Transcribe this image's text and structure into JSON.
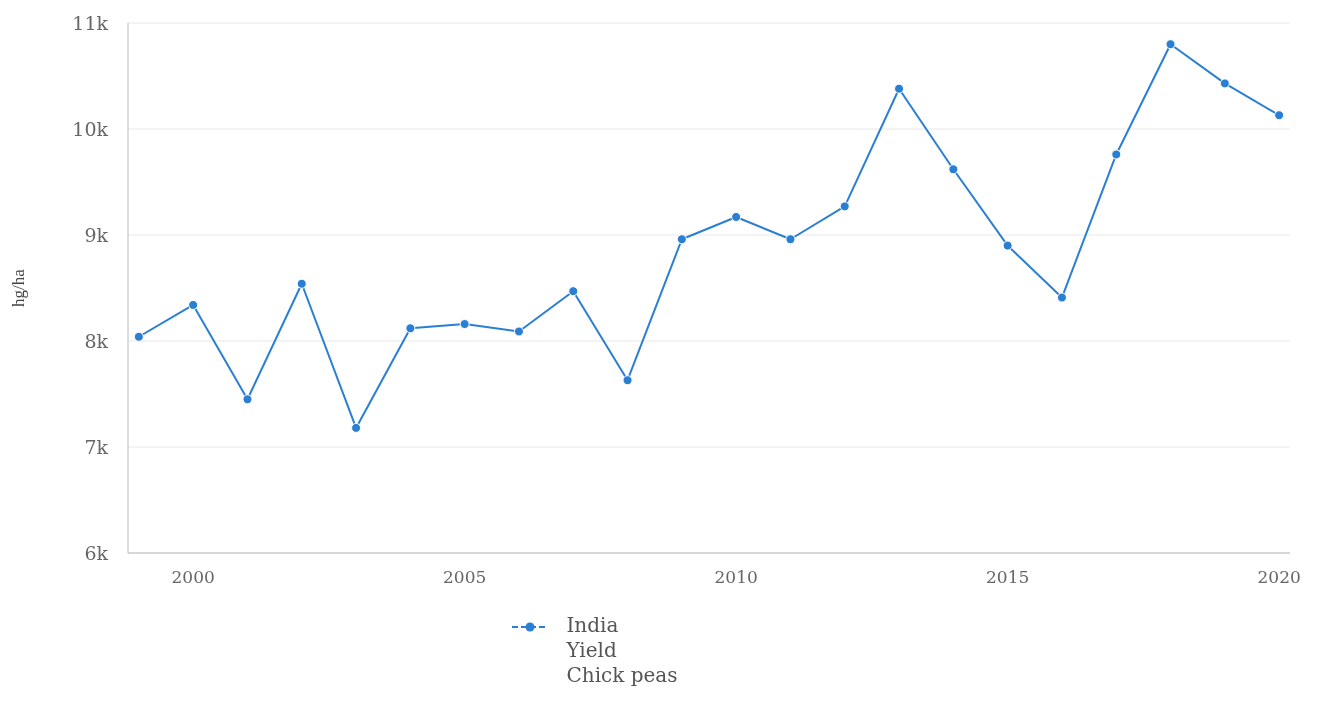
{
  "chart_data": {
    "type": "line",
    "ylabel": "hg/ha",
    "x": [
      1999,
      2000,
      2001,
      2002,
      2003,
      2004,
      2005,
      2006,
      2007,
      2008,
      2009,
      2010,
      2011,
      2012,
      2013,
      2014,
      2015,
      2016,
      2017,
      2018,
      2019,
      2020
    ],
    "series": [
      {
        "name": "India\nYield\nChick peas",
        "color": "#2a7fd4",
        "values": [
          8040,
          8340,
          7450,
          8540,
          7180,
          8120,
          8160,
          8090,
          8470,
          7630,
          8960,
          9170,
          8960,
          9270,
          10380,
          9620,
          8900,
          8410,
          9760,
          10800,
          10430,
          10130
        ]
      }
    ],
    "xlim": [
      1998.8,
      2020.2
    ],
    "xticks": [
      2000,
      2005,
      2010,
      2015,
      2020
    ],
    "ylim": [
      6000,
      11000
    ],
    "yticks": [
      {
        "value": 6000,
        "label": "6k"
      },
      {
        "value": 7000,
        "label": "7k"
      },
      {
        "value": 8000,
        "label": "8k"
      },
      {
        "value": 9000,
        "label": "9k"
      },
      {
        "value": 10000,
        "label": "10k"
      },
      {
        "value": 11000,
        "label": "11k"
      }
    ],
    "grid": "y",
    "legend": "bottom",
    "marker": "circle",
    "line_style": "solid"
  }
}
